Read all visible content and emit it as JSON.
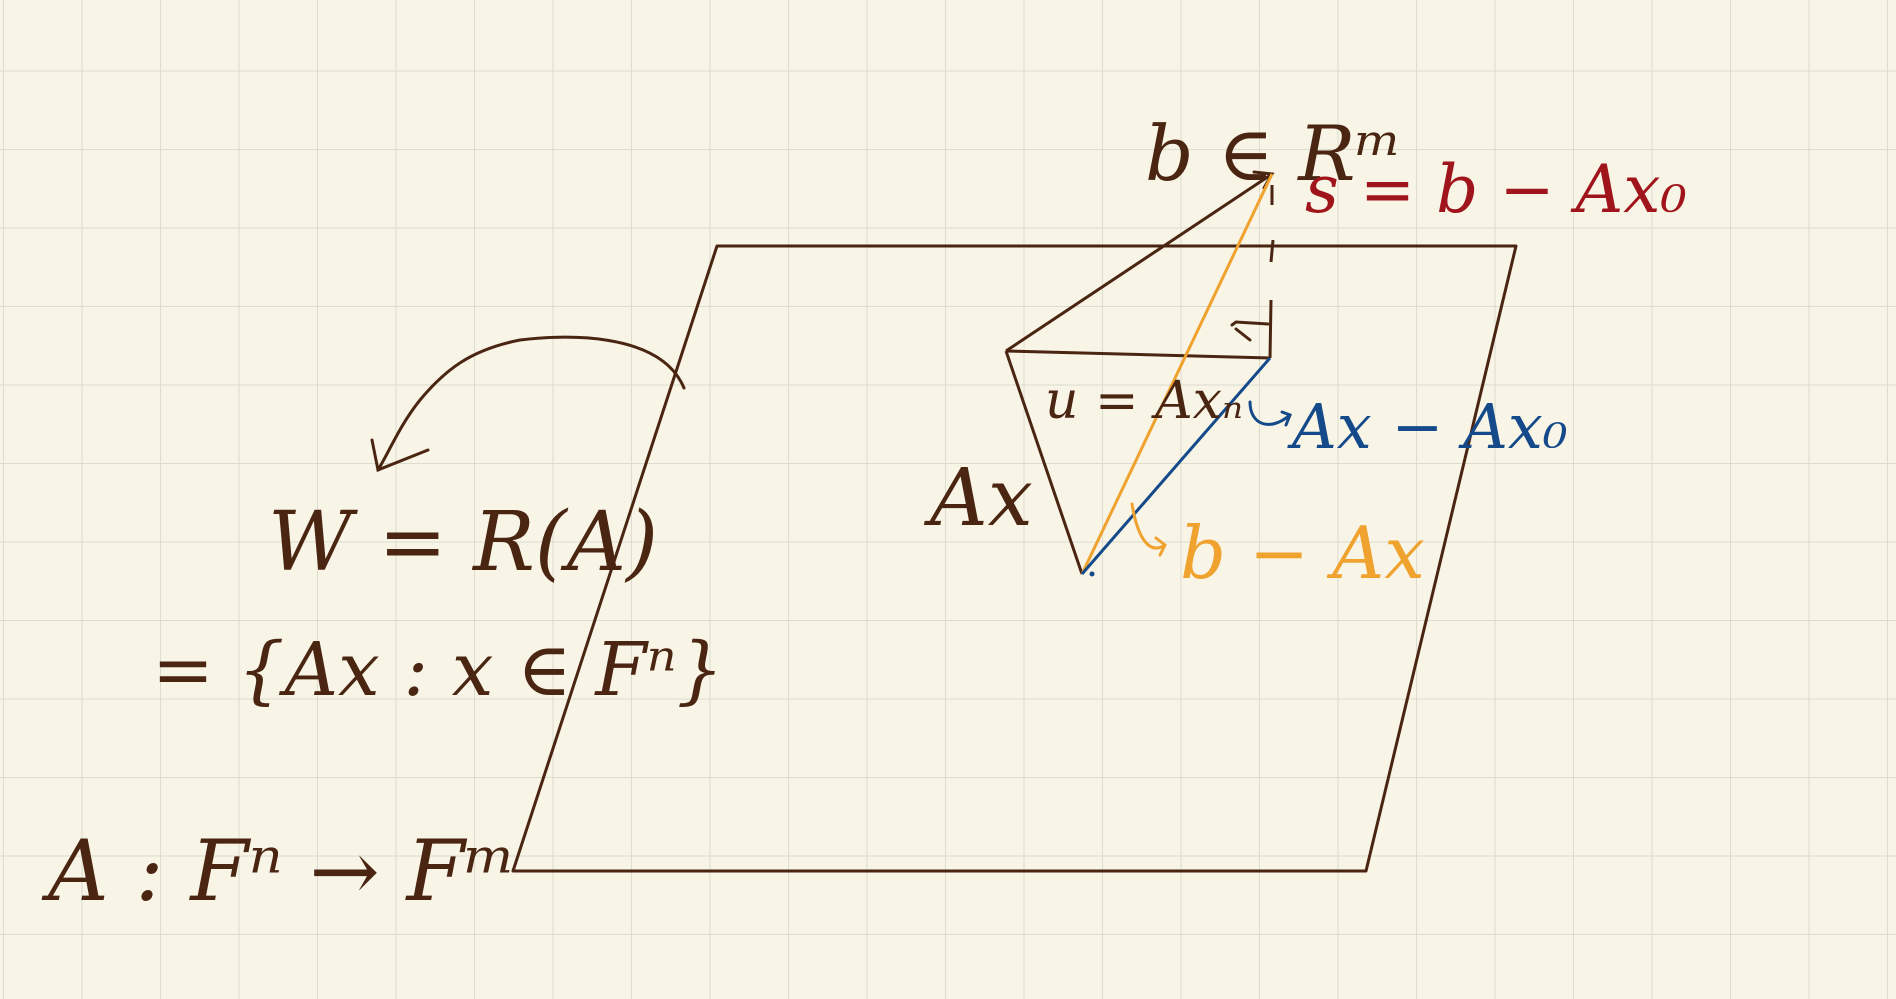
{
  "colors": {
    "paper": "#f8f4e6",
    "grid": "#dcdccf",
    "ink": "#4a2511",
    "red": "#a0151b",
    "blue": "#154a8a",
    "orange": "#f0a22e"
  },
  "labels": {
    "w_line1": "W = R(A)",
    "w_line2": "= {Ax : x ∈ Fⁿ}",
    "map": "A : Fⁿ → Fᵐ",
    "ax": "Ax",
    "b_in": "b ∈ Rᵐ",
    "u": "u = Axₙ",
    "s": "s = b − Ax₀",
    "blue_label": "Ax − Ax₀",
    "orange_label": "b − Ax"
  }
}
